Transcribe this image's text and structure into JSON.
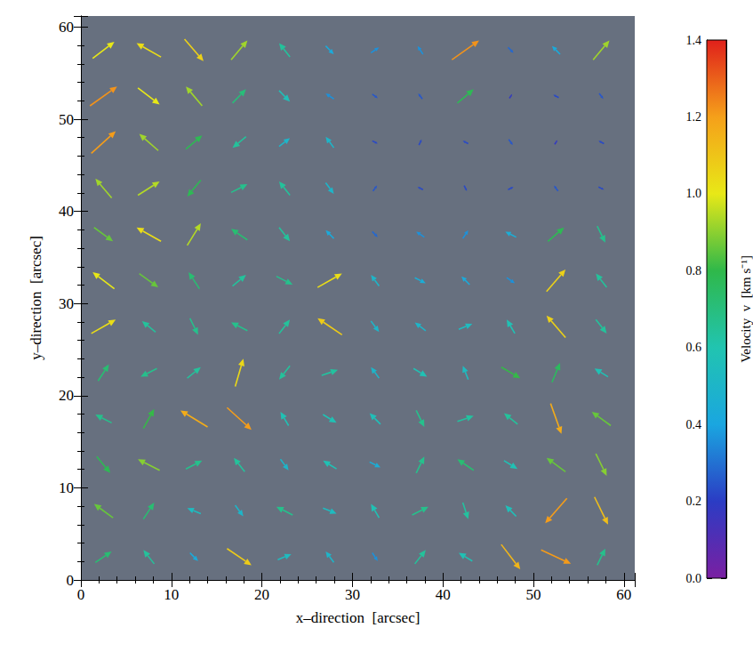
{
  "chart_data": {
    "type": "vector_field",
    "xlabel": "x–direction  [arcsec]",
    "ylabel": "y–direction  [arcsec]",
    "xlim": [
      0,
      61.2
    ],
    "ylim": [
      0,
      61.2
    ],
    "xticks": [
      0,
      10,
      20,
      30,
      40,
      50,
      60
    ],
    "yticks": [
      0,
      10,
      20,
      30,
      40,
      50,
      60
    ],
    "grid": false,
    "vectors": {
      "x": [
        2.5,
        7.5,
        12.5,
        17.5,
        22.5,
        27.5,
        32.5,
        37.5,
        42.5,
        47.5,
        52.5,
        57.5
      ],
      "y": [
        2.5,
        7.5,
        12.5,
        17.5,
        22.5,
        27.5,
        32.5,
        37.5,
        42.5,
        47.5,
        52.5,
        57.5
      ],
      "vx": [
        [
          0.6,
          -0.4,
          0.3,
          0.9,
          0.5,
          -0.3,
          0.2,
          0.4,
          -0.5,
          0.7,
          1.1,
          0.3
        ],
        [
          -0.7,
          0.4,
          -0.5,
          0.3,
          -0.6,
          0.5,
          -0.3,
          0.6,
          0.2,
          -0.4,
          -0.8,
          0.5
        ],
        [
          0.5,
          -0.8,
          0.6,
          -0.4,
          0.3,
          -0.5,
          0.4,
          0.3,
          -0.6,
          0.5,
          -0.7,
          0.4
        ],
        [
          -0.6,
          0.4,
          -1.0,
          0.9,
          -0.3,
          0.5,
          -0.4,
          0.3,
          0.6,
          -0.5,
          0.4,
          -0.7
        ],
        [
          0.4,
          -0.6,
          0.5,
          0.3,
          -0.4,
          0.6,
          -0.3,
          0.5,
          -0.2,
          0.7,
          0.3,
          -0.5
        ],
        [
          0.9,
          -0.5,
          0.3,
          -0.6,
          0.4,
          -0.9,
          0.3,
          -0.4,
          0.5,
          -0.3,
          -0.7,
          0.4
        ],
        [
          -0.8,
          0.7,
          -0.4,
          0.5,
          0.6,
          0.9,
          -0.3,
          0.4,
          -0.3,
          0.3,
          0.7,
          -0.4
        ],
        [
          0.7,
          -0.9,
          0.5,
          -0.6,
          0.4,
          -0.3,
          0.2,
          -0.3,
          0.2,
          -0.4,
          0.6,
          0.3
        ],
        [
          -0.6,
          0.8,
          -0.5,
          0.6,
          -0.4,
          0.3,
          0.15,
          -0.2,
          0.1,
          0.2,
          -0.15,
          0.2
        ],
        [
          0.9,
          -0.7,
          0.6,
          -0.5,
          0.4,
          -0.3,
          0.2,
          0.1,
          -0.2,
          0.15,
          0.1,
          -0.2
        ],
        [
          1.0,
          0.8,
          -0.6,
          0.5,
          0.4,
          -0.3,
          0.2,
          -0.15,
          0.6,
          0.1,
          -0.2,
          0.15
        ],
        [
          0.8,
          -0.9,
          0.7,
          0.6,
          -0.4,
          0.3,
          0.3,
          -0.2,
          1.0,
          0.2,
          -0.3,
          0.6
        ]
      ],
      "vy": [
        [
          0.4,
          0.5,
          -0.3,
          -0.6,
          0.2,
          0.4,
          -0.3,
          0.5,
          0.3,
          -0.9,
          -0.5,
          0.6
        ],
        [
          0.5,
          0.6,
          0.2,
          -0.4,
          0.3,
          -0.2,
          0.5,
          0.3,
          -0.6,
          0.4,
          -0.9,
          -1.0
        ],
        [
          -0.6,
          0.4,
          0.3,
          0.5,
          -0.4,
          0.3,
          -0.2,
          0.6,
          0.4,
          -0.3,
          0.5,
          -0.8
        ],
        [
          0.3,
          0.7,
          0.6,
          -0.8,
          0.5,
          -0.3,
          0.4,
          -0.6,
          0.2,
          0.4,
          -1.1,
          0.5
        ],
        [
          0.6,
          -0.3,
          0.4,
          1.0,
          -0.5,
          0.2,
          0.4,
          -0.3,
          0.5,
          -0.4,
          0.7,
          0.3
        ],
        [
          0.5,
          0.4,
          -0.6,
          0.3,
          0.5,
          0.6,
          -0.4,
          0.3,
          0.2,
          0.5,
          0.8,
          -0.5
        ],
        [
          0.6,
          -0.5,
          0.6,
          0.4,
          -0.3,
          0.5,
          0.4,
          -0.2,
          0.3,
          -0.2,
          0.8,
          0.5
        ],
        [
          -0.5,
          0.5,
          0.8,
          0.4,
          -0.5,
          0.3,
          -0.2,
          0.2,
          0.3,
          0.2,
          0.5,
          -0.6
        ],
        [
          0.7,
          0.5,
          -0.6,
          0.3,
          0.5,
          -0.4,
          0.2,
          0.1,
          -0.2,
          0.1,
          0.2,
          -0.1
        ],
        [
          0.8,
          0.6,
          0.5,
          -0.4,
          0.3,
          0.4,
          -0.1,
          0.2,
          0.1,
          -0.2,
          0.15,
          0.1
        ],
        [
          0.7,
          -0.6,
          0.7,
          0.5,
          -0.4,
          0.2,
          -0.15,
          0.2,
          0.5,
          0.15,
          0.1,
          -0.2
        ],
        [
          0.6,
          0.5,
          -0.8,
          0.7,
          0.5,
          -0.3,
          0.2,
          0.3,
          0.7,
          -0.2,
          0.3,
          0.7
        ]
      ]
    },
    "colorbar": {
      "label": "Velocity  v  [km s⁻¹]",
      "lim": [
        0,
        1.4
      ],
      "ticks": [
        {
          "value": 0,
          "label": "0.0"
        },
        {
          "value": 0.2,
          "label": "0.2"
        },
        {
          "value": 0.4,
          "label": "0.4"
        },
        {
          "value": 0.6,
          "label": "0.6"
        },
        {
          "value": 0.8,
          "label": "0.8"
        },
        {
          "value": 1.0,
          "label": "1.0"
        },
        {
          "value": 1.2,
          "label": "1.2"
        },
        {
          "value": 1.4,
          "label": "1.4"
        }
      ]
    }
  }
}
